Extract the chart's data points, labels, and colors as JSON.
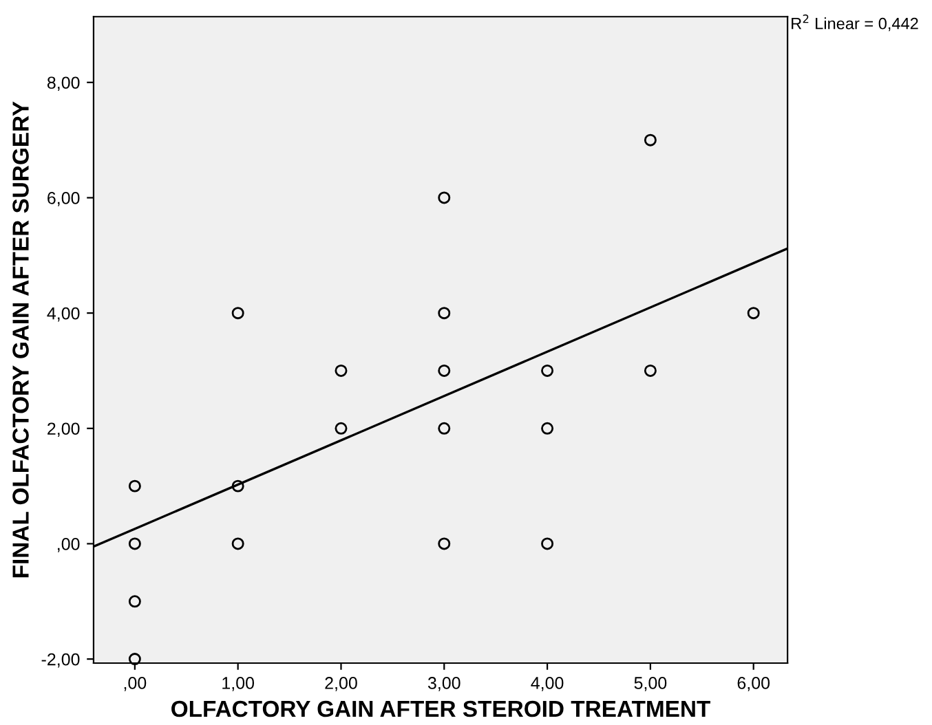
{
  "chart_data": {
    "type": "scatter",
    "xlabel": "OLFACTORY GAIN AFTER STEROID TREATMENT",
    "ylabel": "FINAL OLFACTORY GAIN AFTER SURGERY",
    "annotations": [
      "R$^{2}$ Linear = 0,442"
    ],
    "series": [
      {
        "color": "#000000",
        "marker": "circle",
        "x": [
          0,
          0,
          0,
          0,
          1,
          1,
          1,
          2,
          2,
          3,
          3,
          3,
          3,
          3,
          4,
          4,
          4,
          5,
          5,
          6
        ],
        "values": [
          1,
          0,
          -1,
          -2,
          4,
          1,
          0,
          3,
          2,
          6,
          4,
          3,
          2,
          0,
          3,
          2,
          0,
          7,
          3,
          4
        ]
      },
      {
        "type": "line",
        "color": "#000000",
        "x": [
          -0.4,
          6.33
        ],
        "values": [
          -0.05,
          5.12
        ]
      }
    ],
    "xlim": [
      -0.4,
      6.33
    ],
    "ylim": [
      -2.07,
      9.14
    ],
    "xticks": [
      {
        "value": 0,
        "label": ",00"
      },
      {
        "value": 1,
        "label": "1,00"
      },
      {
        "value": 2,
        "label": "2,00"
      },
      {
        "value": 3,
        "label": "3,00"
      },
      {
        "value": 4,
        "label": "4,00"
      },
      {
        "value": 5,
        "label": "5,00"
      },
      {
        "value": 6,
        "label": "6,00"
      }
    ],
    "yticks": [
      {
        "value": -2,
        "label": "-2,00"
      },
      {
        "value": 0,
        "label": ",00"
      },
      {
        "value": 2,
        "label": "2,00"
      },
      {
        "value": 4,
        "label": "4,00"
      },
      {
        "value": 6,
        "label": "6,00"
      },
      {
        "value": 8,
        "label": "8,00"
      }
    ]
  }
}
